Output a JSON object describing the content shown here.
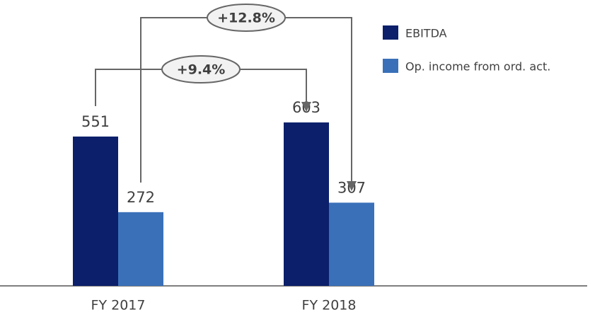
{
  "chart_data": {
    "type": "bar",
    "categories": [
      "FY 2017",
      "FY 2018"
    ],
    "series": [
      {
        "name": "EBITDA",
        "color": "#0b1f6b",
        "values": [
          551,
          603
        ]
      },
      {
        "name": "Op. income from ord. act.",
        "color": "#3a70b8",
        "values": [
          272,
          307
        ]
      }
    ],
    "annotations": [
      "+9.4%",
      "+12.8%"
    ]
  }
}
